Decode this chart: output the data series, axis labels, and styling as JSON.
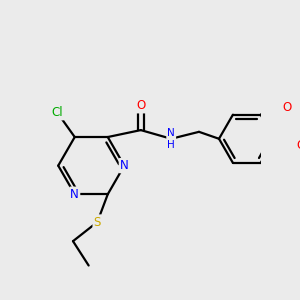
{
  "bg_color": "#ebebeb",
  "bond_color": "#000000",
  "bond_width": 1.6,
  "atom_colors": {
    "N": "#0000ff",
    "O": "#ff0000",
    "S": "#ccaa00",
    "Cl": "#00aa00",
    "C": "#000000",
    "H": "#000000"
  },
  "font_size": 8.5,
  "title": "",
  "figsize": [
    3.0,
    3.0
  ],
  "dpi": 100
}
